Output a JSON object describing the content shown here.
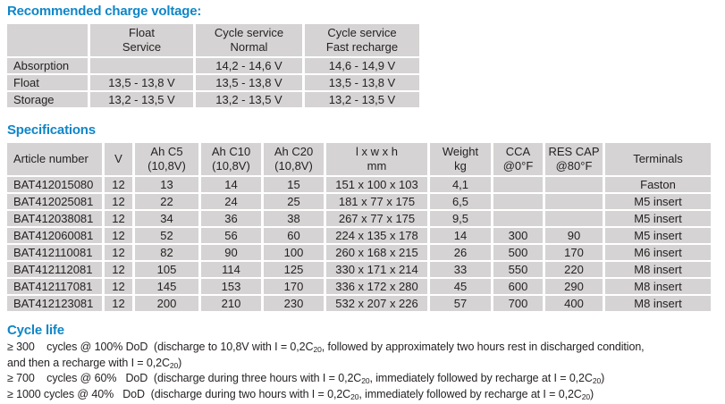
{
  "colors": {
    "heading_blue": "#0f86c8",
    "cell_gray": "#d5d3d3",
    "text": "#262223"
  },
  "headings": {
    "charge": "Recommended charge voltage:",
    "specifications": "Specifications",
    "cycle_life": "Cycle life"
  },
  "charge_table": {
    "headers": [
      {
        "line1": "",
        "line2": ""
      },
      {
        "line1": "Float",
        "line2": "Service"
      },
      {
        "line1": "Cycle service",
        "line2": "Normal"
      },
      {
        "line1": "Cycle service",
        "line2": "Fast recharge"
      }
    ],
    "rows": [
      [
        "Absorption",
        "",
        "14,2 - 14,6 V",
        "14,6 - 14,9 V"
      ],
      [
        "Float",
        "13,5 - 13,8 V",
        "13,5 - 13,8 V",
        "13,5 - 13,8 V"
      ],
      [
        "Storage",
        "13,2 - 13,5 V",
        "13,2 - 13,5 V",
        "13,2 - 13,5 V"
      ]
    ]
  },
  "spec_table": {
    "headers": [
      {
        "line1": "Article number",
        "line2": ""
      },
      {
        "line1": "V",
        "line2": ""
      },
      {
        "line1": "Ah C5",
        "line2": "(10,8V)"
      },
      {
        "line1": "Ah C10",
        "line2": "(10,8V)"
      },
      {
        "line1": "Ah C20",
        "line2": "(10,8V)"
      },
      {
        "line1": "l x w x h",
        "line2": "mm"
      },
      {
        "line1": "Weight",
        "line2": "kg"
      },
      {
        "line1": "CCA",
        "line2": "@0°F"
      },
      {
        "line1": "RES CAP",
        "line2": "@80°F"
      },
      {
        "line1": "Terminals",
        "line2": ""
      }
    ],
    "rows": [
      [
        "BAT412015080",
        "12",
        "13",
        "14",
        "15",
        "151 x 100 x 103",
        "4,1",
        "",
        "",
        "Faston"
      ],
      [
        "BAT412025081",
        "12",
        "22",
        "24",
        "25",
        "181 x 77 x 175",
        "6,5",
        "",
        "",
        "M5 insert"
      ],
      [
        "BAT412038081",
        "12",
        "34",
        "36",
        "38",
        "267 x 77 x 175",
        "9,5",
        "",
        "",
        "M5 insert"
      ],
      [
        "BAT412060081",
        "12",
        "52",
        "56",
        "60",
        "224 x 135 x 178",
        "14",
        "300",
        "90",
        "M5 insert"
      ],
      [
        "BAT412110081",
        "12",
        "82",
        "90",
        "100",
        "260 x 168 x 215",
        "26",
        "500",
        "170",
        "M6 insert"
      ],
      [
        "BAT412112081",
        "12",
        "105",
        "114",
        "125",
        "330 x 171 x 214",
        "33",
        "550",
        "220",
        "M8 insert"
      ],
      [
        "BAT412117081",
        "12",
        "145",
        "153",
        "170",
        "336 x 172 x 280",
        "45",
        "600",
        "290",
        "M8 insert"
      ],
      [
        "BAT412123081",
        "12",
        "200",
        "210",
        "230",
        "532 x 207 x 226",
        "57",
        "700",
        "400",
        "M8 insert"
      ]
    ]
  },
  "cycle_life": {
    "lines": [
      "≥ 300    cycles @ 100% DoD  (discharge to 10,8V with I = 0,2C~20~, followed by approximately two hours rest in discharged condition,",
      "and then a recharge with I = 0,2C~20~)",
      "≥ 700    cycles @ 60%   DoD  (discharge during three hours with I = 0,2C~20~, immediately followed by recharge at I = 0,2C~20~)",
      "≥ 1000 cycles @ 40%   DoD  (discharge during two hours with I = 0,2C~20~, immediately followed by recharge at I = 0,2C~20~)"
    ]
  }
}
